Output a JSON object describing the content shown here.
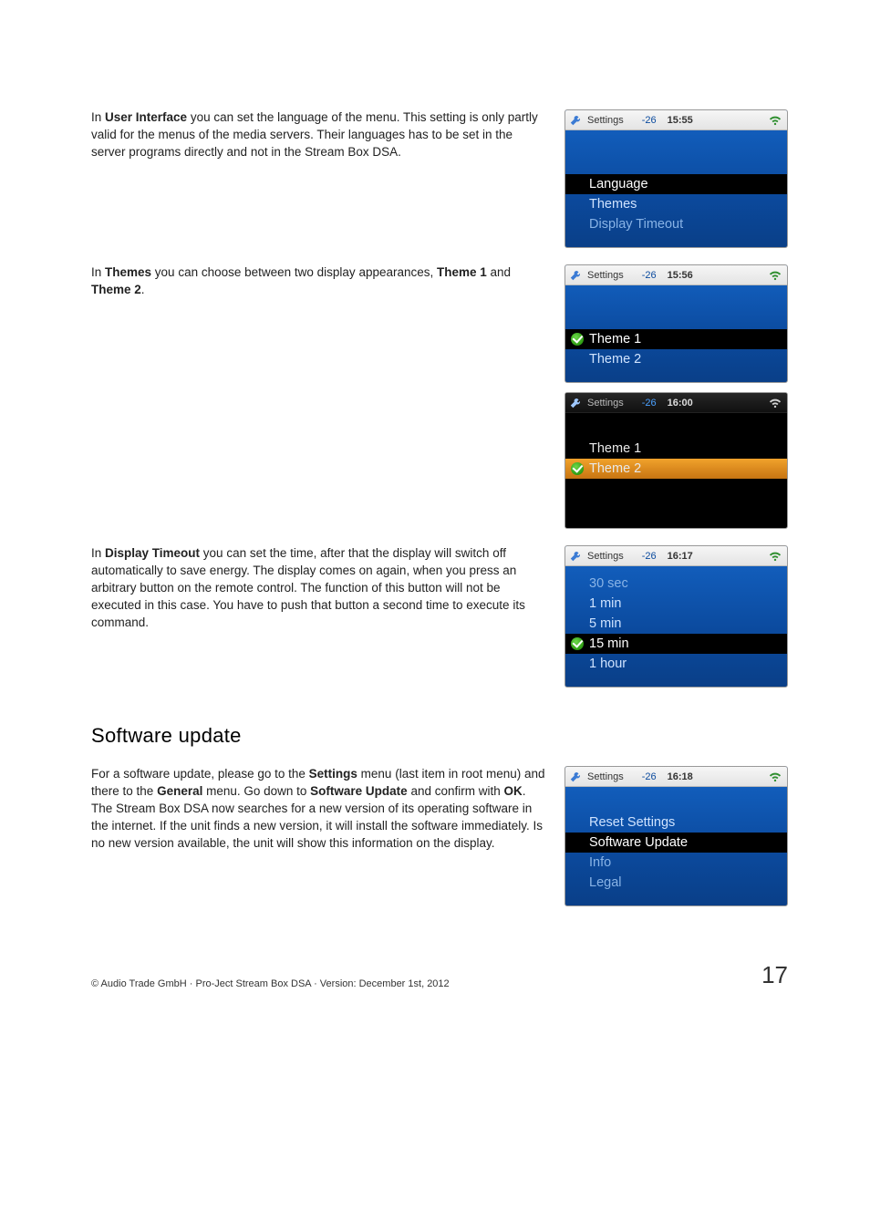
{
  "sections": {
    "ui_paragraph": {
      "pre": "In ",
      "b1": "User Interface",
      "rest": " you can set the language of the menu. This setting is only partly valid for the menus of the media servers. Their languages has to be set in the server programs directly and not in the Stream Box DSA."
    },
    "themes_paragraph": {
      "pre": "In ",
      "b1": "Themes",
      "mid": " you can choose between two display appearances, ",
      "b2": "Theme 1",
      "and": " and ",
      "b3": "Theme 2",
      "end": "."
    },
    "timeout_paragraph": {
      "pre": "In ",
      "b1": "Display Timeout",
      "rest": " you can set the time, after that the display will switch off automatically to save energy. The display comes on again, when you press an arbitrary button on the remote control. The function of this button will not be executed in this case. You have to push that button a second time to execute its command."
    },
    "software_heading": "Software update",
    "software_paragraph": {
      "p1a": "For a software update, please go to the ",
      "b1": "Settings",
      "p1b": " menu (last item in root menu) and there to the ",
      "b2": "General",
      "p1c": " menu. Go down to ",
      "b3": "Software Update",
      "p1d": " and confirm with ",
      "b4": "OK",
      "p1e": ". The Stream Box DSA now searches for a new version of its operating software in the internet. If the unit finds a new version, it will install the software immediately. Is no new version available, the unit will show this information on the display."
    }
  },
  "status": {
    "title": "Settings",
    "vol": "-26"
  },
  "shots": {
    "ui": {
      "time": "15:55",
      "items": [
        {
          "label": "Language",
          "sel": "black"
        },
        {
          "label": "Themes"
        },
        {
          "label": "Display Timeout",
          "dim": true
        }
      ],
      "spacer": "lg"
    },
    "themes1": {
      "time": "15:56",
      "items": [
        {
          "label": "Theme 1",
          "sel": "black",
          "check": true
        },
        {
          "label": "Theme 2"
        }
      ],
      "spacer": "lg"
    },
    "themes2": {
      "time": "16:00",
      "theme": "dark",
      "items": [
        {
          "label": "Theme 1"
        },
        {
          "label": "Theme 2",
          "sel": "orange",
          "check": true
        }
      ],
      "spacer": "sm",
      "spacer_after": "lg"
    },
    "timeout": {
      "time": "16:17",
      "items": [
        {
          "label": "30 sec",
          "dim": true
        },
        {
          "label": "1 min"
        },
        {
          "label": "5 min"
        },
        {
          "label": "15 min",
          "sel": "black",
          "check": true
        },
        {
          "label": "1 hour"
        }
      ],
      "spacer": "none"
    },
    "software": {
      "time": "16:18",
      "items": [
        {
          "label": "Reset Settings"
        },
        {
          "label": "Software Update",
          "sel": "black"
        },
        {
          "label": "Info",
          "dim": true
        },
        {
          "label": "Legal",
          "dim": true
        }
      ],
      "spacer": "sm"
    }
  },
  "footer": {
    "copyright": "© Audio Trade GmbH · Pro-Ject Stream Box DSA · Version: December 1st, 2012",
    "page": "17"
  },
  "colors": {
    "blue_grad_top": "#1463c4",
    "blue_grad_bot": "#0a3f88",
    "orange_top": "#f1a22c",
    "orange_bot": "#c77512",
    "check_green": "#3fb61f"
  }
}
